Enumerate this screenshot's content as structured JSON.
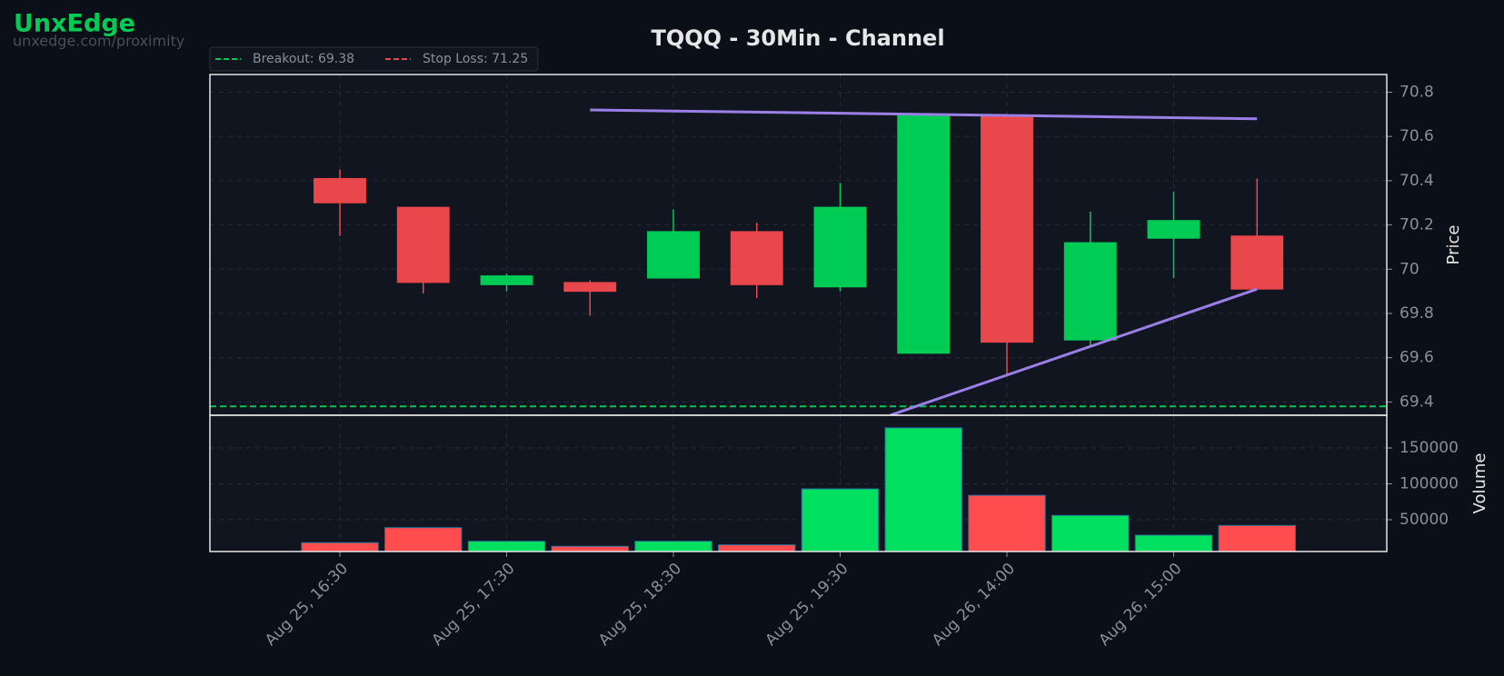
{
  "brand": {
    "name": "UnxEdge",
    "url": "unxedge.com/proximity"
  },
  "chart_data": {
    "type": "candlestick",
    "title": "TQQQ - 30Min - Channel",
    "categories": [
      "Aug 25, 16:30",
      null,
      "Aug 25, 17:30",
      null,
      "Aug 25, 18:30",
      null,
      "Aug 25, 19:30",
      null,
      "Aug 26, 14:00",
      null,
      "Aug 26, 15:00",
      null
    ],
    "open": [
      70.41,
      70.28,
      69.93,
      69.94,
      69.96,
      70.17,
      69.92,
      69.62,
      70.69,
      69.68,
      70.14,
      70.15
    ],
    "high": [
      70.45,
      70.28,
      69.98,
      69.95,
      70.27,
      70.21,
      70.39,
      70.7,
      70.69,
      70.26,
      70.35,
      70.41
    ],
    "low": [
      70.15,
      69.89,
      69.9,
      69.79,
      69.96,
      69.87,
      69.9,
      69.62,
      69.52,
      69.65,
      69.96,
      69.91
    ],
    "close": [
      70.3,
      69.94,
      69.97,
      69.9,
      70.17,
      69.93,
      70.28,
      70.7,
      69.67,
      70.12,
      70.22,
      69.91
    ],
    "volume": [
      18000,
      39000,
      20000,
      13000,
      20000,
      15000,
      93000,
      178000,
      84000,
      56000,
      28500,
      42000
    ],
    "up_color": "#00cc55",
    "down_color": "#e8474b",
    "volume_up_color": "#00e060",
    "volume_down_color": "#ff4d4f",
    "y_label": "Price",
    "ylim": [
      69.34,
      70.88
    ],
    "yticks": [
      69.4,
      69.6,
      69.8,
      70.0,
      70.2,
      70.4,
      70.6,
      70.8
    ],
    "volume_label": "Volume",
    "volume_ylim": [
      5700,
      195600
    ],
    "volume_yticks": [
      50000,
      100000,
      150000
    ],
    "levels": [
      {
        "name": "Breakout: 69.38",
        "value": 69.38,
        "color": "#00c853"
      },
      {
        "name": "Stop Loss: 71.25",
        "value": 71.25,
        "color": "#e8474b"
      }
    ],
    "trendlines": [
      {
        "x": [
          3,
          11
        ],
        "y": [
          70.72,
          70.68
        ],
        "color": "#9b7fe6"
      },
      {
        "x": [
          6.6,
          11
        ],
        "y": [
          69.34,
          69.91
        ],
        "color": "#9b7fe6"
      }
    ],
    "grid": true
  }
}
